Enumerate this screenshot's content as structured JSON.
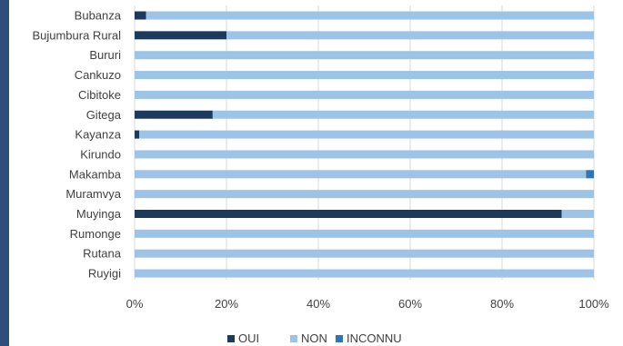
{
  "chart_data": {
    "type": "bar",
    "orientation": "horizontal",
    "stacked": "percent",
    "categories": [
      "Bubanza",
      "Bujumbura Rural",
      "Bururi",
      "Cankuzo",
      "Cibitoke",
      "Gitega",
      "Kayanza",
      "Kirundo",
      "Makamba",
      "Muramvya",
      "Muyinga",
      "Rumonge",
      "Rutana",
      "Ruyigi"
    ],
    "series": [
      {
        "name": "OUI",
        "color": "#1b3a5c",
        "values": [
          2.5,
          20,
          0,
          0,
          0,
          17,
          1,
          0,
          0,
          0,
          93,
          0,
          0,
          0
        ]
      },
      {
        "name": "NON",
        "color": "#9dc3e6",
        "values": [
          97.5,
          80,
          100,
          100,
          100,
          83,
          99,
          100,
          98.3,
          100,
          7,
          100,
          100,
          100
        ]
      },
      {
        "name": "INCONNU",
        "color": "#2e75b6",
        "values": [
          0,
          0,
          0,
          0,
          0,
          0,
          0,
          0,
          1.7,
          0,
          0,
          0,
          0,
          0
        ]
      }
    ],
    "x_ticks": [
      "0%",
      "20%",
      "40%",
      "60%",
      "80%",
      "100%"
    ],
    "xlim": [
      0,
      100
    ],
    "grid": true,
    "legend_position": "bottom"
  }
}
